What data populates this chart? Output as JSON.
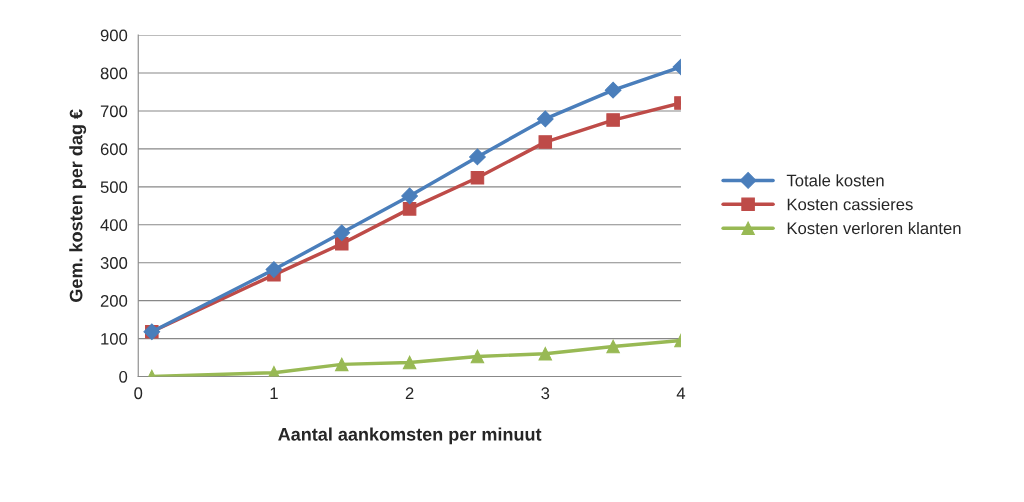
{
  "chart_data": {
    "type": "line",
    "xlabel": "Aantal aankomsten per minuut",
    "ylabel": "Gem. kosten per dag €",
    "x": [
      0.1,
      1,
      1.5,
      2,
      2.5,
      3,
      3.5,
      4
    ],
    "series": [
      {
        "name": "Totale kosten",
        "color": "#4a7ebb",
        "marker": "diamond",
        "values": [
          118,
          282,
          379,
          476,
          579,
          679,
          755,
          816
        ]
      },
      {
        "name": "Kosten cassieres",
        "color": "#be4b48",
        "marker": "square",
        "values": [
          118,
          268,
          350,
          442,
          524,
          618,
          676,
          721
        ]
      },
      {
        "name": "Kosten verloren klanten",
        "color": "#98b954",
        "marker": "triangle",
        "values": [
          0,
          10,
          32,
          37,
          53,
          60,
          79,
          95
        ]
      }
    ],
    "xlim": [
      0,
      4
    ],
    "xticks": [
      0,
      1,
      2,
      3,
      4
    ],
    "ylim": [
      0,
      900
    ],
    "yticks": [
      0,
      100,
      200,
      300,
      400,
      500,
      600,
      700,
      800,
      900
    ],
    "grid": "y",
    "legend": "right",
    "line_style": "solid"
  }
}
